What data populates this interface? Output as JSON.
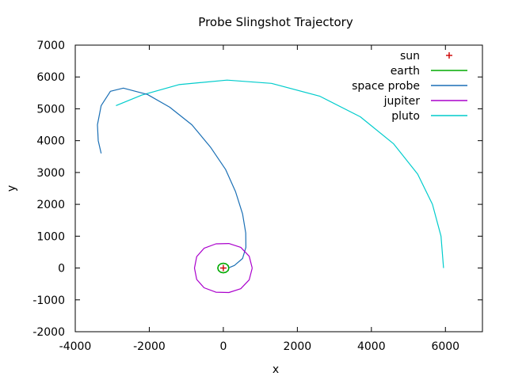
{
  "chart_data": {
    "type": "line",
    "title": "Probe Slingshot Trajectory",
    "xlabel": "x",
    "ylabel": "y",
    "xlim": [
      -4000,
      7000
    ],
    "ylim": [
      -2000,
      7000
    ],
    "xticks": [
      -4000,
      -2000,
      0,
      2000,
      4000,
      6000
    ],
    "yticks": [
      -2000,
      -1000,
      0,
      1000,
      2000,
      3000,
      4000,
      5000,
      6000,
      7000
    ],
    "grid": false,
    "legend_position": "top-right",
    "series": [
      {
        "name": "sun",
        "style": "point",
        "color": "#cc0000",
        "points": [
          [
            0,
            0
          ]
        ]
      },
      {
        "name": "earth",
        "style": "line",
        "color": "#00aa00",
        "points": [
          [
            150,
            0
          ],
          [
            130,
            75
          ],
          [
            75,
            130
          ],
          [
            0,
            150
          ],
          [
            -75,
            130
          ],
          [
            -130,
            75
          ],
          [
            -150,
            0
          ],
          [
            -130,
            -75
          ],
          [
            -75,
            -130
          ],
          [
            0,
            -150
          ],
          [
            75,
            -130
          ],
          [
            130,
            -75
          ],
          [
            150,
            0
          ]
        ]
      },
      {
        "name": "space probe",
        "style": "line",
        "color": "#1a6fb5",
        "points": [
          [
            130,
            0
          ],
          [
            300,
            80
          ],
          [
            520,
            300
          ],
          [
            610,
            650
          ],
          [
            605,
            1100
          ],
          [
            520,
            1700
          ],
          [
            330,
            2400
          ],
          [
            60,
            3100
          ],
          [
            -350,
            3800
          ],
          [
            -850,
            4500
          ],
          [
            -1450,
            5050
          ],
          [
            -2050,
            5450
          ],
          [
            -2700,
            5650
          ],
          [
            -3050,
            5550
          ],
          [
            -3300,
            5100
          ],
          [
            -3400,
            4500
          ],
          [
            -3380,
            4000
          ],
          [
            -3300,
            3600
          ]
        ]
      },
      {
        "name": "jupiter",
        "style": "line",
        "color": "#aa00cc",
        "points": [
          [
            780,
            0
          ],
          [
            700,
            370
          ],
          [
            470,
            650
          ],
          [
            150,
            770
          ],
          [
            -200,
            760
          ],
          [
            -520,
            620
          ],
          [
            -720,
            360
          ],
          [
            -780,
            0
          ],
          [
            -720,
            -360
          ],
          [
            -520,
            -620
          ],
          [
            -200,
            -760
          ],
          [
            150,
            -770
          ],
          [
            470,
            -650
          ],
          [
            700,
            -370
          ],
          [
            780,
            0
          ]
        ]
      },
      {
        "name": "pluto",
        "style": "line",
        "color": "#00cccc",
        "points": [
          [
            5950,
            0
          ],
          [
            5880,
            1000
          ],
          [
            5650,
            2000
          ],
          [
            5250,
            2950
          ],
          [
            4600,
            3900
          ],
          [
            3700,
            4750
          ],
          [
            2600,
            5400
          ],
          [
            1300,
            5800
          ],
          [
            100,
            5900
          ],
          [
            -1200,
            5760
          ],
          [
            -2200,
            5430
          ],
          [
            -2900,
            5100
          ]
        ]
      }
    ]
  }
}
